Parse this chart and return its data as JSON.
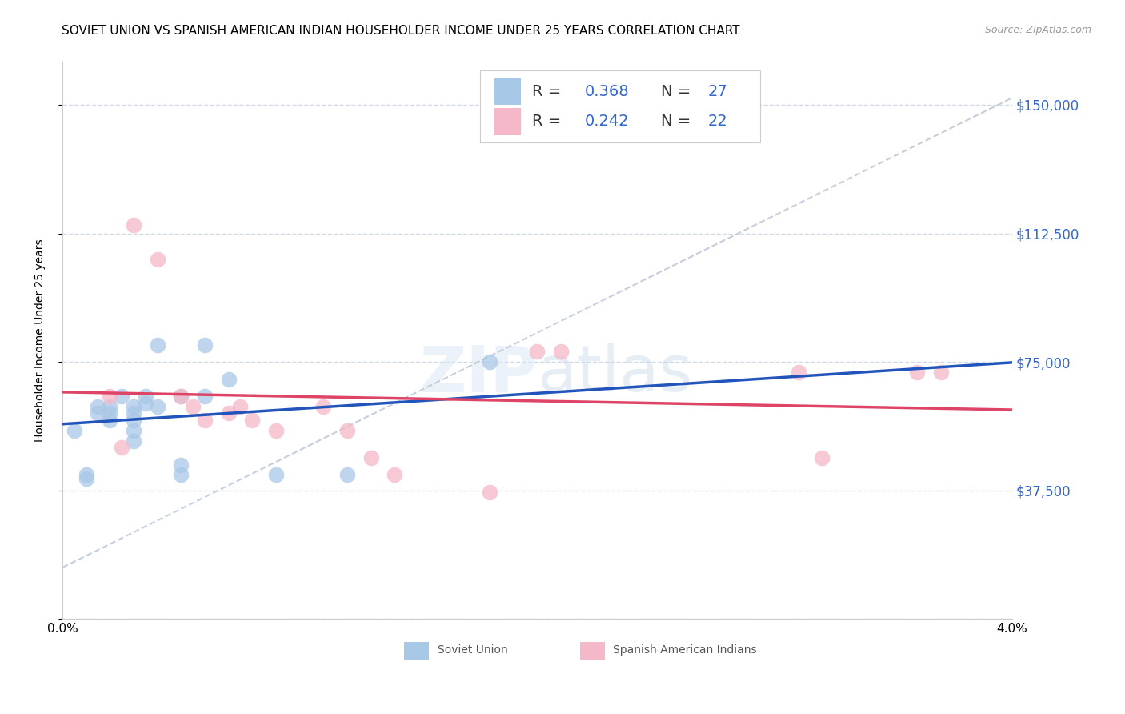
{
  "title": "SOVIET UNION VS SPANISH AMERICAN INDIAN HOUSEHOLDER INCOME UNDER 25 YEARS CORRELATION CHART",
  "source": "Source: ZipAtlas.com",
  "ylabel": "Householder Income Under 25 years",
  "xlim": [
    0.0,
    0.04
  ],
  "ylim": [
    0,
    162500
  ],
  "yticks": [
    0,
    37500,
    75000,
    112500,
    150000
  ],
  "ytick_labels": [
    "",
    "$37,500",
    "$75,000",
    "$112,500",
    "$150,000"
  ],
  "background_color": "#ffffff",
  "watermark": "ZIPatlas",
  "soviet_color": "#a8c8e8",
  "spanish_color": "#f5b8c8",
  "soviet_line_color": "#2255bb",
  "spanish_line_color": "#dd4466",
  "diagonal_color": "#c0c8d8",
  "soviet_x": [
    0.0005,
    0.001,
    0.001,
    0.0015,
    0.0015,
    0.002,
    0.002,
    0.002,
    0.0025,
    0.003,
    0.003,
    0.003,
    0.003,
    0.003,
    0.0035,
    0.0035,
    0.004,
    0.004,
    0.005,
    0.005,
    0.005,
    0.006,
    0.006,
    0.007,
    0.009,
    0.012,
    0.018
  ],
  "soviet_y": [
    55000,
    42000,
    41000,
    62000,
    60000,
    62000,
    60000,
    58000,
    65000,
    62000,
    60000,
    58000,
    55000,
    52000,
    65000,
    63000,
    80000,
    62000,
    65000,
    45000,
    42000,
    80000,
    65000,
    70000,
    42000,
    42000,
    75000
  ],
  "spanish_x": [
    0.002,
    0.0025,
    0.003,
    0.004,
    0.005,
    0.0055,
    0.006,
    0.007,
    0.0075,
    0.008,
    0.009,
    0.011,
    0.012,
    0.013,
    0.014,
    0.018,
    0.02,
    0.021,
    0.031,
    0.032,
    0.036,
    0.037
  ],
  "spanish_y": [
    65000,
    50000,
    115000,
    105000,
    65000,
    62000,
    58000,
    60000,
    62000,
    58000,
    55000,
    62000,
    55000,
    47000,
    42000,
    37000,
    78000,
    78000,
    72000,
    47000,
    72000,
    72000
  ],
  "grid_color": "#d0d8e8",
  "title_fontsize": 11,
  "axis_label_fontsize": 10,
  "tick_fontsize": 10,
  "legend_fontsize": 14
}
